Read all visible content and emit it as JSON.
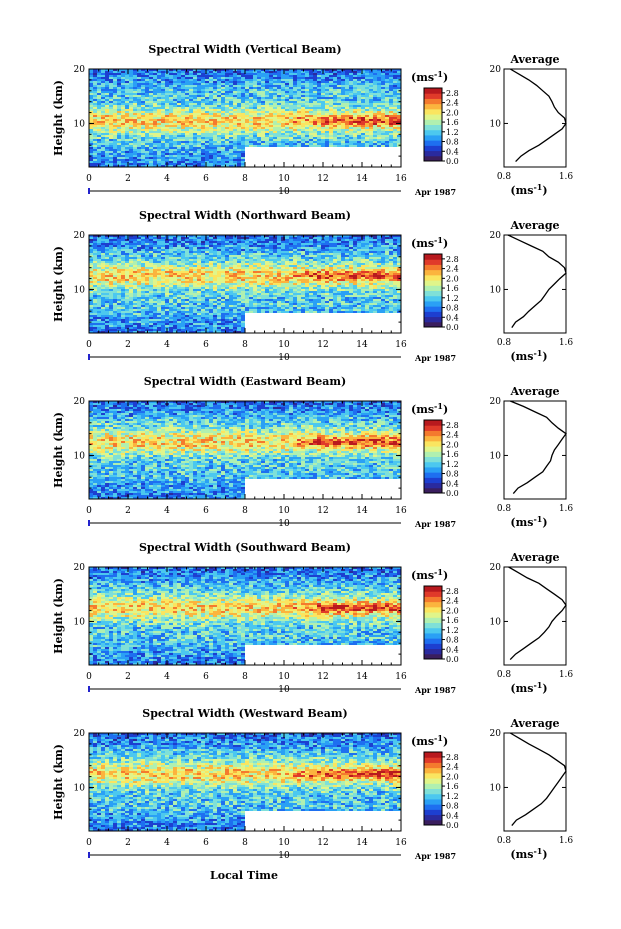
{
  "figure": {
    "xlabel": "Local Time",
    "ylabel": "Height (km)",
    "date_label": "Apr 1987",
    "date_day": "10",
    "unit_label": "(ms",
    "unit_exp": "-1",
    "avg_title": "Average"
  },
  "colormap": [
    "#3a1e5e",
    "#2a2a9e",
    "#1d3fd0",
    "#1e6ff0",
    "#2aa0f5",
    "#4cc8ef",
    "#7fe0d8",
    "#b0f0b0",
    "#e0f58a",
    "#fae560",
    "#fbb43e",
    "#f47a2e",
    "#e03a2a",
    "#b8191e"
  ],
  "chart_data": [
    {
      "type": "heatmap",
      "title": "Spectral Width (Vertical Beam)",
      "x_range": [
        0,
        16
      ],
      "y_range": [
        2,
        20
      ],
      "x_ticks": [
        0,
        2,
        4,
        6,
        8,
        10,
        12,
        14,
        16
      ],
      "x_ticklabels": [
        "0",
        "2",
        "4",
        "6",
        "8",
        "10",
        "12",
        "14",
        "16"
      ],
      "y_ticks": [
        10,
        20
      ],
      "colorbar": {
        "range": [
          0,
          3.0
        ],
        "ticks": [
          "0.0",
          "0.4",
          "0.8",
          "1.2",
          "1.6",
          "2.0",
          "2.4",
          "2.8"
        ]
      },
      "data_gap": {
        "x_start": 8,
        "x_end": 16,
        "y_below": 5.5
      },
      "average_profile": {
        "xlabel": "(ms",
        "xlabel_exp": "-1",
        "x_range": [
          0.8,
          1.6
        ],
        "x_ticks": [
          "0.8",
          "1.6"
        ],
        "y_ticks": [
          "10",
          "20"
        ],
        "height": [
          3,
          4,
          5,
          6,
          7,
          8,
          9,
          10,
          11,
          12,
          13,
          14,
          15,
          16,
          17,
          18,
          19,
          20
        ],
        "value": [
          0.95,
          1.02,
          1.12,
          1.25,
          1.35,
          1.45,
          1.55,
          1.6,
          1.58,
          1.5,
          1.45,
          1.42,
          1.38,
          1.3,
          1.22,
          1.12,
          1.0,
          0.88
        ]
      }
    },
    {
      "type": "heatmap",
      "title": "Spectral Width (Northward Beam)",
      "x_range": [
        0,
        16
      ],
      "y_range": [
        2,
        20
      ],
      "x_ticks": [
        0,
        2,
        4,
        6,
        8,
        10,
        12,
        14,
        16
      ],
      "x_ticklabels": [
        "0",
        "2",
        "4",
        "6",
        "8",
        "10",
        "12",
        "14",
        "16"
      ],
      "y_ticks": [
        10,
        20
      ],
      "colorbar": {
        "range": [
          0,
          3.0
        ],
        "ticks": [
          "0.0",
          "0.4",
          "0.8",
          "1.2",
          "1.6",
          "2.0",
          "2.4",
          "2.8"
        ]
      },
      "data_gap": {
        "x_start": 8,
        "x_end": 16,
        "y_below": 5.5
      },
      "average_profile": {
        "xlabel": "(ms",
        "xlabel_exp": "-1",
        "x_range": [
          0.8,
          1.6
        ],
        "x_ticks": [
          "0.8",
          "1.6"
        ],
        "y_ticks": [
          "10",
          "20"
        ],
        "height": [
          3,
          4,
          5,
          6,
          7,
          8,
          9,
          10,
          11,
          12,
          13,
          14,
          15,
          16,
          17,
          18,
          19,
          20
        ],
        "value": [
          0.9,
          0.95,
          1.05,
          1.12,
          1.2,
          1.28,
          1.33,
          1.38,
          1.45,
          1.52,
          1.6,
          1.58,
          1.5,
          1.38,
          1.3,
          1.15,
          1.0,
          0.85
        ]
      }
    },
    {
      "type": "heatmap",
      "title": "Spectral Width (Eastward Beam)",
      "x_range": [
        0,
        16
      ],
      "y_range": [
        2,
        20
      ],
      "x_ticks": [
        0,
        2,
        4,
        6,
        8,
        10,
        12,
        14,
        16
      ],
      "x_ticklabels": [
        "0",
        "2",
        "4",
        "6",
        "8",
        "10",
        "12",
        "14",
        "16"
      ],
      "y_ticks": [
        10,
        20
      ],
      "colorbar": {
        "range": [
          0,
          3.0
        ],
        "ticks": [
          "0.0",
          "0.4",
          "0.8",
          "1.2",
          "1.6",
          "2.0",
          "2.4",
          "2.8"
        ]
      },
      "data_gap": {
        "x_start": 8,
        "x_end": 16,
        "y_below": 5.5
      },
      "average_profile": {
        "xlabel": "(ms",
        "xlabel_exp": "-1",
        "x_range": [
          0.8,
          1.6
        ],
        "x_ticks": [
          "0.8",
          "1.6"
        ],
        "y_ticks": [
          "10",
          "20"
        ],
        "height": [
          3,
          4,
          5,
          6,
          7,
          8,
          9,
          10,
          11,
          12,
          13,
          14,
          15,
          16,
          17,
          18,
          19,
          20
        ],
        "value": [
          0.92,
          0.98,
          1.1,
          1.2,
          1.3,
          1.35,
          1.4,
          1.42,
          1.45,
          1.5,
          1.55,
          1.6,
          1.5,
          1.42,
          1.35,
          1.2,
          1.05,
          0.88
        ]
      }
    },
    {
      "type": "heatmap",
      "title": "Spectral Width (Southward Beam)",
      "x_range": [
        0,
        16
      ],
      "y_range": [
        2,
        20
      ],
      "x_ticks": [
        0,
        2,
        4,
        6,
        8,
        10,
        12,
        14,
        16
      ],
      "x_ticklabels": [
        "0",
        "2",
        "4",
        "6",
        "8",
        "10",
        "12",
        "14",
        "16"
      ],
      "y_ticks": [
        10,
        20
      ],
      "colorbar": {
        "range": [
          0,
          3.0
        ],
        "ticks": [
          "0.0",
          "0.4",
          "0.8",
          "1.2",
          "1.6",
          "2.0",
          "2.4",
          "2.8"
        ]
      },
      "data_gap": {
        "x_start": 8,
        "x_end": 16,
        "y_below": 5.5
      },
      "average_profile": {
        "xlabel": "(ms",
        "xlabel_exp": "-1",
        "x_range": [
          0.8,
          1.6
        ],
        "x_ticks": [
          "0.8",
          "1.6"
        ],
        "y_ticks": [
          "10",
          "20"
        ],
        "height": [
          3,
          4,
          5,
          6,
          7,
          8,
          9,
          10,
          11,
          12,
          13,
          14,
          15,
          16,
          17,
          18,
          19,
          20
        ],
        "value": [
          0.88,
          0.95,
          1.05,
          1.15,
          1.25,
          1.32,
          1.38,
          1.42,
          1.48,
          1.55,
          1.6,
          1.55,
          1.45,
          1.35,
          1.25,
          1.1,
          0.98,
          0.86
        ]
      }
    },
    {
      "type": "heatmap",
      "title": "Spectral Width (Westward Beam)",
      "x_range": [
        0,
        16
      ],
      "y_range": [
        2,
        20
      ],
      "x_ticks": [
        0,
        2,
        4,
        6,
        8,
        10,
        12,
        14,
        16
      ],
      "x_ticklabels": [
        "0",
        "2",
        "4",
        "6",
        "8",
        "10",
        "12",
        "14",
        "16"
      ],
      "y_ticks": [
        10,
        20
      ],
      "colorbar": {
        "range": [
          0,
          3.0
        ],
        "ticks": [
          "0.0",
          "0.4",
          "0.8",
          "1.2",
          "1.6",
          "2.0",
          "2.4",
          "2.8"
        ]
      },
      "data_gap": {
        "x_start": 8,
        "x_end": 16,
        "y_below": 5.5
      },
      "average_profile": {
        "xlabel": "(ms",
        "xlabel_exp": "-1",
        "x_range": [
          0.8,
          1.6
        ],
        "x_ticks": [
          "0.8",
          "1.6"
        ],
        "y_ticks": [
          "10",
          "20"
        ],
        "height": [
          3,
          4,
          5,
          6,
          7,
          8,
          9,
          10,
          11,
          12,
          13,
          14,
          15,
          16,
          17,
          18,
          19,
          20
        ],
        "value": [
          0.9,
          0.96,
          1.08,
          1.18,
          1.28,
          1.35,
          1.4,
          1.45,
          1.5,
          1.55,
          1.6,
          1.58,
          1.48,
          1.38,
          1.25,
          1.12,
          1.0,
          0.88
        ]
      }
    }
  ]
}
